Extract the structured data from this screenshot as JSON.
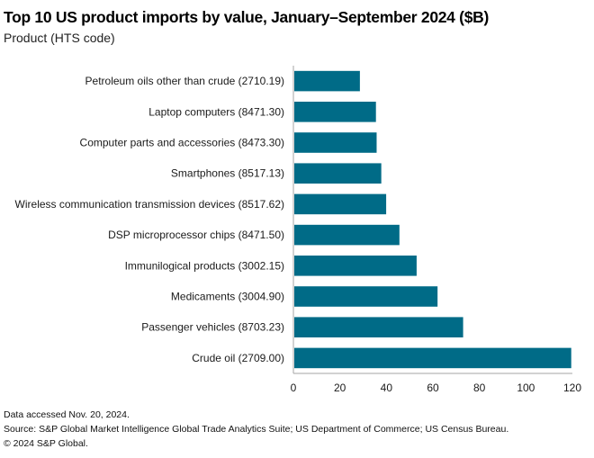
{
  "chart_data": {
    "type": "bar",
    "orientation": "horizontal",
    "title": "Top 10 US product imports by value, January–September 2024 ($B)",
    "subtitle": "Product (HTS code)",
    "xlabel": "",
    "ylabel": "Product (HTS code)",
    "xlim": [
      0,
      120
    ],
    "xticks": [
      0,
      20,
      40,
      60,
      80,
      100,
      120
    ],
    "grid": false,
    "legend": "none",
    "bar_color": "#006b87",
    "categories": [
      "Petroleum oils other than crude (2710.19)",
      "Laptop computers (8471.30)",
      "Computer parts and accessories (8473.30)",
      "Smartphones (8517.13)",
      "Wireless communication transmission devices (8517.62)",
      "DSP microprocessor chips (8471.50)",
      "Immunilogical products (3002.15)",
      "Medicaments (3004.90)",
      "Passenger vehicles (8703.23)",
      "Crude oil (2709.00)"
    ],
    "values": [
      28.6,
      35.5,
      35.8,
      37.8,
      39.9,
      45.6,
      53.0,
      62.0,
      73.0,
      119.5
    ]
  },
  "footer": {
    "accessed": "Data accessed Nov. 20, 2024.",
    "source": "Source: S&P Global Market Intelligence Global Trade Analytics Suite; US Department of Commerce; US Census Bureau.",
    "copyright": "© 2024 S&P Global."
  }
}
